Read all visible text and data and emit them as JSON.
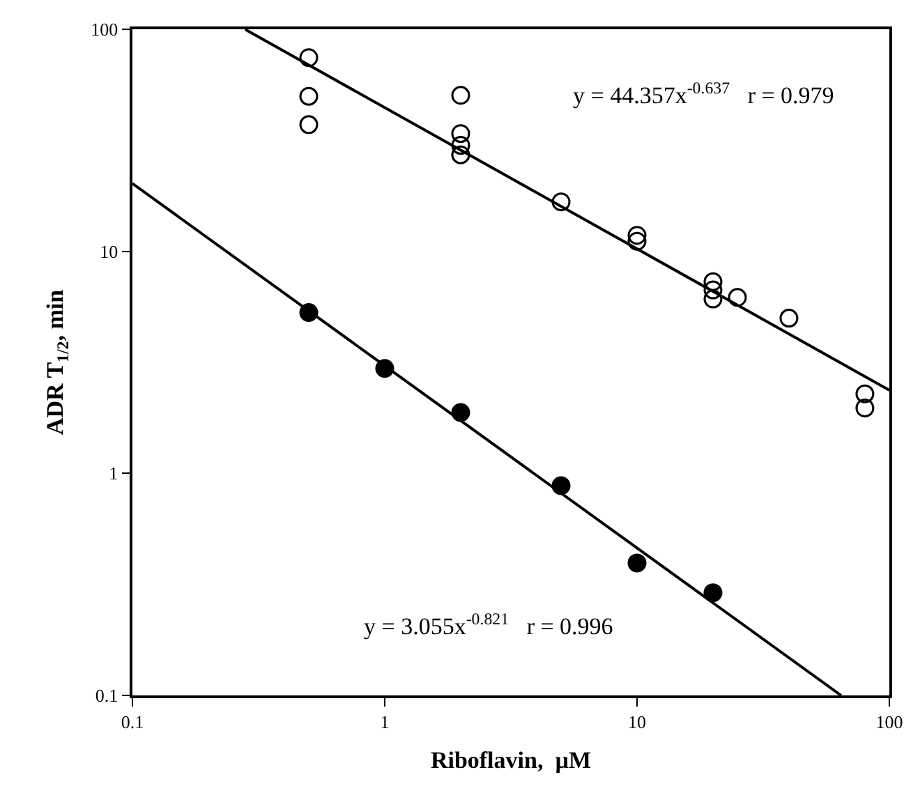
{
  "chart_data": {
    "type": "scatter",
    "xlabel": "Riboflavin,  µM",
    "ylabel": "ADR T$_{1/2}$, min",
    "log": "xy",
    "xlim": [
      0.1,
      100
    ],
    "xticks": [
      0.1,
      1,
      10,
      100
    ],
    "ylim": [
      0.1,
      100
    ],
    "yticks": [
      0.1,
      1,
      10,
      100
    ],
    "annotations": [
      "y = 44.357x$^{-0.637}$   r = 0.979",
      "y = 3.055x$^{-0.821}$   r = 0.996"
    ],
    "series": [
      {
        "marker": "circle-open",
        "color": "#000000",
        "x": [
          0.5,
          0.5,
          0.5,
          2,
          2,
          2,
          2,
          5,
          10,
          10,
          20,
          20,
          20,
          25,
          40,
          80,
          80
        ],
        "values": [
          74.5,
          49.9,
          37.2,
          50.4,
          33.9,
          30,
          27.2,
          16.7,
          11.8,
          11.1,
          7.3,
          6.7,
          6.1,
          6.2,
          5.0,
          2.28,
          1.97
        ]
      },
      {
        "marker": "circle",
        "color": "#000000",
        "x": [
          0.5,
          1,
          2,
          5,
          10,
          20
        ],
        "values": [
          5.3,
          2.97,
          1.88,
          0.88,
          0.395,
          0.29
        ]
      },
      {
        "type": "line",
        "marker": "none",
        "color": "#000000",
        "x": [
          0.28,
          100
        ],
        "values": [
          99.8,
          2.37
        ]
      },
      {
        "type": "line",
        "marker": "none",
        "color": "#000000",
        "x": [
          0.1,
          64.4
        ],
        "values": [
          20.2,
          0.1
        ]
      }
    ]
  }
}
